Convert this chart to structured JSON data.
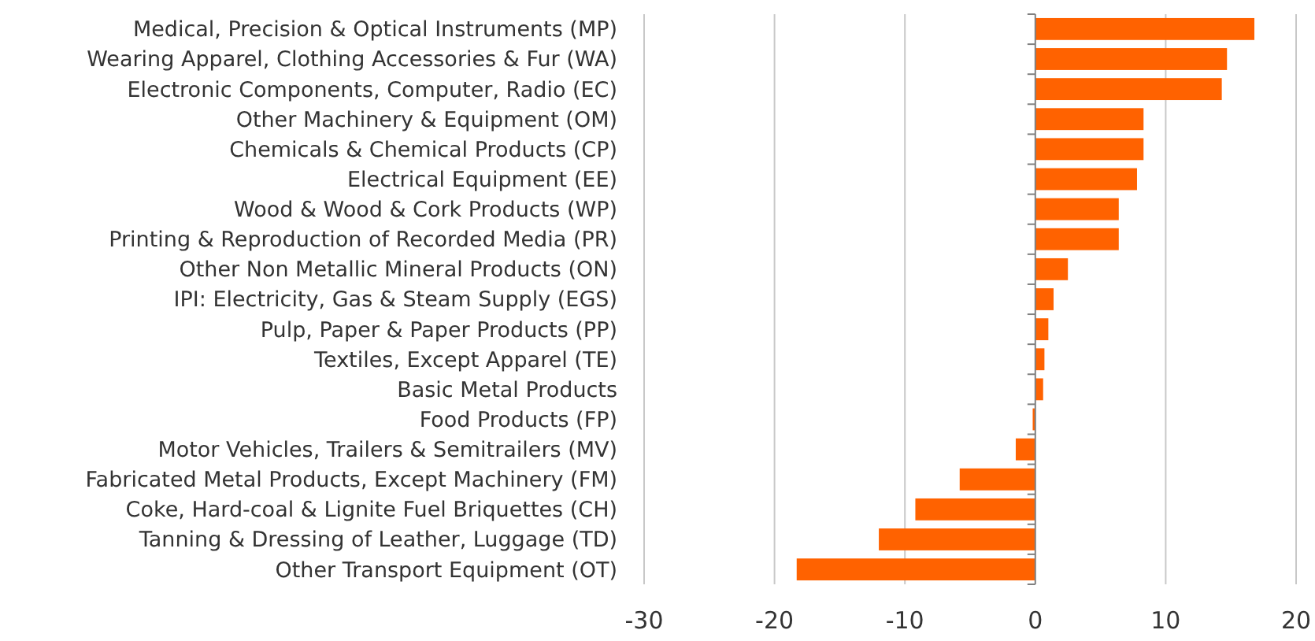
{
  "chart_data": {
    "type": "bar",
    "orientation": "horizontal",
    "categories": [
      "Medical, Precision & Optical Instruments (MP)",
      "Wearing Apparel, Clothing Accessories & Fur (WA)",
      "Electronic Components, Computer, Radio (EC)",
      "Other Machinery & Equipment (OM)",
      "Chemicals & Chemical Products (CP)",
      "Electrical Equipment (EE)",
      "Wood & Wood & Cork Products (WP)",
      "Printing & Reproduction of Recorded Media (PR)",
      "Other Non Metallic Mineral Products (ON)",
      "IPI: Electricity, Gas & Steam Supply (EGS)",
      "Pulp, Paper & Paper Products (PP)",
      "Textiles, Except Apparel (TE)",
      "Basic Metal Products",
      "Food Products (FP)",
      "Motor Vehicles, Trailers & Semitrailers (MV)",
      "Fabricated Metal Products, Except Machinery (FM)",
      "Coke, Hard-coal & Lignite Fuel Briquettes (CH)",
      "Tanning & Dressing of Leather, Luggage (TD)",
      "Other Transport Equipment (OT)"
    ],
    "values": [
      16.8,
      14.7,
      14.3,
      8.3,
      8.3,
      7.8,
      6.4,
      6.4,
      2.5,
      1.4,
      1.0,
      0.7,
      0.6,
      -0.2,
      -1.5,
      -5.8,
      -9.2,
      -12.0,
      -18.3
    ],
    "color": "#ff6200",
    "xlim": [
      -30,
      20
    ],
    "xticks": [
      -30,
      -20,
      -10,
      0,
      10,
      20
    ],
    "grid": "x"
  }
}
